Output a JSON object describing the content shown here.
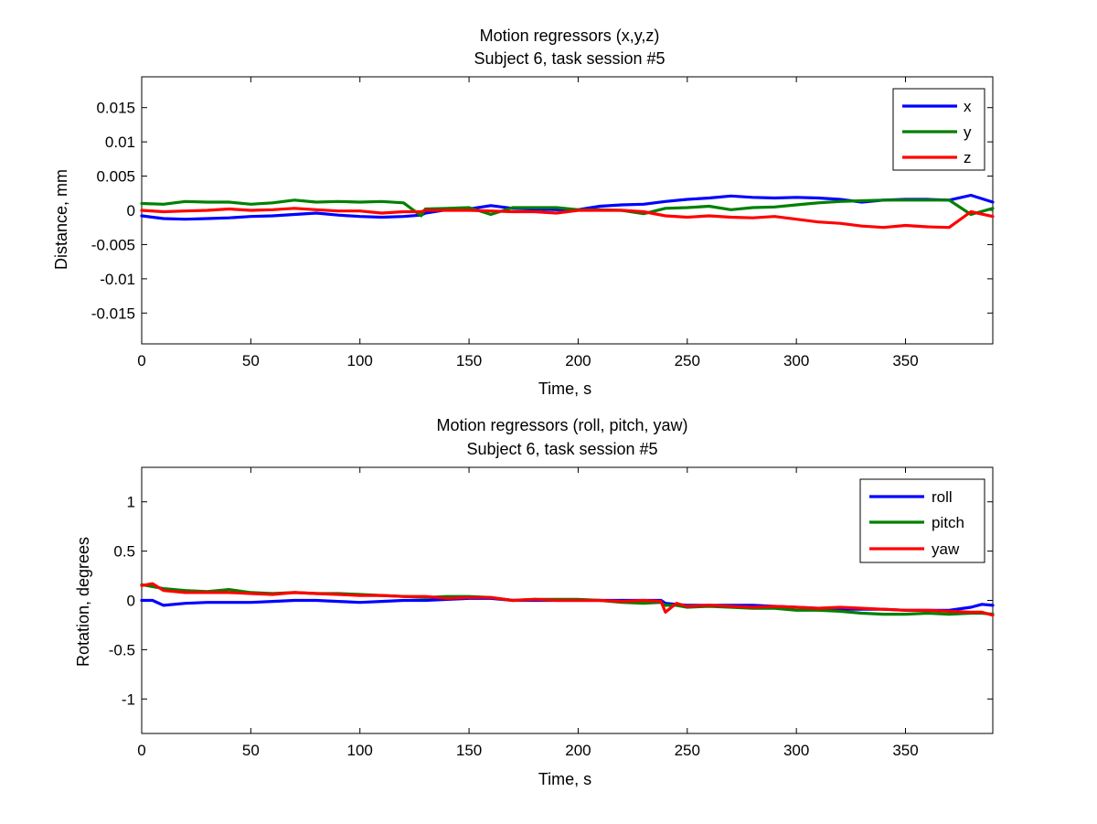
{
  "figure": {
    "background": "#ffffff"
  },
  "chart_data": [
    {
      "type": "line",
      "title": "Motion regressors (x,y,z)",
      "subtitle": "Subject 6, task session #5",
      "xlabel": "Time, s",
      "ylabel": "Distance, mm",
      "xlim": [
        0,
        390
      ],
      "ylim": [
        -0.0195,
        0.0195
      ],
      "xticks": [
        0,
        50,
        100,
        150,
        200,
        250,
        300,
        350
      ],
      "xtick_labels": [
        "0",
        "50",
        "100",
        "150",
        "200",
        "250",
        "300",
        "350"
      ],
      "yticks": [
        -0.015,
        -0.01,
        -0.005,
        0,
        0.005,
        0.01,
        0.015
      ],
      "ytick_labels": [
        "-0.015",
        "-0.01",
        "-0.005",
        "0",
        "0.005",
        "0.01",
        "0.015"
      ],
      "grid": false,
      "legend_position": "top-right",
      "x": [
        0,
        10,
        20,
        30,
        40,
        50,
        60,
        70,
        80,
        90,
        100,
        110,
        120,
        128,
        130,
        140,
        150,
        160,
        170,
        180,
        190,
        200,
        210,
        220,
        230,
        240,
        250,
        260,
        270,
        280,
        290,
        300,
        310,
        320,
        330,
        340,
        350,
        360,
        370,
        380,
        390
      ],
      "series": [
        {
          "name": "x",
          "color": "#0000ff",
          "values": [
            -0.0008,
            -0.0012,
            -0.0013,
            -0.0012,
            -0.0011,
            -0.0009,
            -0.0008,
            -0.0006,
            -0.0004,
            -0.0007,
            -0.0009,
            -0.001,
            -0.0009,
            -0.0007,
            -0.0004,
            0.0001,
            0.0002,
            0.0007,
            0.0003,
            0.0002,
            0.0001,
            0.0001,
            0.0006,
            0.0008,
            0.0009,
            0.0013,
            0.0016,
            0.0018,
            0.0021,
            0.0019,
            0.0018,
            0.0019,
            0.0018,
            0.0016,
            0.0012,
            0.0015,
            0.0016,
            0.0016,
            0.0015,
            0.0022,
            0.0012
          ]
        },
        {
          "name": "y",
          "color": "#008000",
          "values": [
            0.001,
            0.0009,
            0.0013,
            0.0012,
            0.0012,
            0.0009,
            0.0011,
            0.0015,
            0.0012,
            0.0013,
            0.0012,
            0.0013,
            0.0011,
            -0.0008,
            0.0002,
            0.0003,
            0.0004,
            -0.0006,
            0.0004,
            0.0004,
            0.0004,
            0.0001,
            0.0001,
            0.0,
            -0.0005,
            0.0003,
            0.0004,
            0.0006,
            0.0001,
            0.0004,
            0.0005,
            0.0008,
            0.0011,
            0.0013,
            0.0014,
            0.0015,
            0.0015,
            0.0015,
            0.0015,
            -0.0006,
            0.0003
          ]
        },
        {
          "name": "z",
          "color": "#ff0000",
          "values": [
            0.0,
            -0.0002,
            -0.0001,
            0.0,
            0.0002,
            0.0,
            0.0001,
            0.0003,
            0.0001,
            -0.0001,
            -0.0001,
            -0.0004,
            -0.0002,
            -0.0002,
            0.0,
            0.0,
            0.0,
            -0.0001,
            -0.0002,
            -0.0002,
            -0.0004,
            0.0,
            0.0,
            0.0,
            -0.0002,
            -0.0008,
            -0.001,
            -0.0008,
            -0.001,
            -0.0011,
            -0.0009,
            -0.0013,
            -0.0017,
            -0.0019,
            -0.0023,
            -0.0025,
            -0.0022,
            -0.0024,
            -0.0025,
            -0.0002,
            -0.0009
          ]
        }
      ]
    },
    {
      "type": "line",
      "title": "Motion regressors (roll, pitch, yaw)",
      "subtitle": "Subject 6, task session #5",
      "xlabel": "Time, s",
      "ylabel": "Rotation, degrees",
      "xlim": [
        0,
        390
      ],
      "ylim": [
        -1.35,
        1.35
      ],
      "xticks": [
        0,
        50,
        100,
        150,
        200,
        250,
        300,
        350
      ],
      "xtick_labels": [
        "0",
        "50",
        "100",
        "150",
        "200",
        "250",
        "300",
        "350"
      ],
      "yticks": [
        -1,
        -0.5,
        0,
        0.5,
        1
      ],
      "ytick_labels": [
        "-1",
        "-0.5",
        "0",
        "0.5",
        "1"
      ],
      "grid": false,
      "legend_position": "top-right",
      "x": [
        0,
        5,
        10,
        20,
        30,
        40,
        50,
        60,
        70,
        80,
        90,
        100,
        110,
        120,
        130,
        140,
        150,
        160,
        170,
        180,
        190,
        200,
        210,
        220,
        230,
        238,
        240,
        245,
        250,
        260,
        270,
        280,
        290,
        300,
        310,
        320,
        330,
        340,
        350,
        360,
        370,
        380,
        385,
        390
      ],
      "series": [
        {
          "name": "roll",
          "color": "#0000ff",
          "values": [
            0.0,
            0.0,
            -0.05,
            -0.03,
            -0.02,
            -0.02,
            -0.02,
            -0.01,
            0.0,
            0.0,
            -0.01,
            -0.02,
            -0.01,
            0.0,
            0.0,
            0.01,
            0.02,
            0.02,
            0.0,
            0.0,
            0.0,
            0.0,
            0.0,
            0.0,
            0.0,
            0.0,
            -0.03,
            -0.04,
            -0.05,
            -0.05,
            -0.05,
            -0.05,
            -0.06,
            -0.07,
            -0.08,
            -0.09,
            -0.09,
            -0.09,
            -0.1,
            -0.1,
            -0.1,
            -0.07,
            -0.04,
            -0.05
          ]
        },
        {
          "name": "pitch",
          "color": "#008000",
          "values": [
            0.16,
            0.14,
            0.12,
            0.1,
            0.09,
            0.11,
            0.08,
            0.07,
            0.08,
            0.07,
            0.07,
            0.06,
            0.05,
            0.04,
            0.03,
            0.04,
            0.04,
            0.03,
            0.0,
            0.01,
            0.01,
            0.01,
            0.0,
            -0.02,
            -0.03,
            -0.02,
            -0.05,
            -0.05,
            -0.07,
            -0.06,
            -0.07,
            -0.08,
            -0.08,
            -0.1,
            -0.1,
            -0.11,
            -0.13,
            -0.14,
            -0.14,
            -0.13,
            -0.14,
            -0.13,
            -0.13,
            -0.14
          ]
        },
        {
          "name": "yaw",
          "color": "#ff0000",
          "values": [
            0.15,
            0.17,
            0.1,
            0.08,
            0.08,
            0.08,
            0.07,
            0.06,
            0.08,
            0.07,
            0.06,
            0.05,
            0.05,
            0.04,
            0.04,
            0.02,
            0.03,
            0.03,
            0.0,
            0.01,
            0.0,
            0.0,
            0.0,
            -0.01,
            0.0,
            -0.01,
            -0.12,
            -0.03,
            -0.06,
            -0.05,
            -0.06,
            -0.07,
            -0.06,
            -0.07,
            -0.08,
            -0.07,
            -0.08,
            -0.09,
            -0.1,
            -0.1,
            -0.11,
            -0.12,
            -0.12,
            -0.15
          ]
        }
      ]
    }
  ]
}
